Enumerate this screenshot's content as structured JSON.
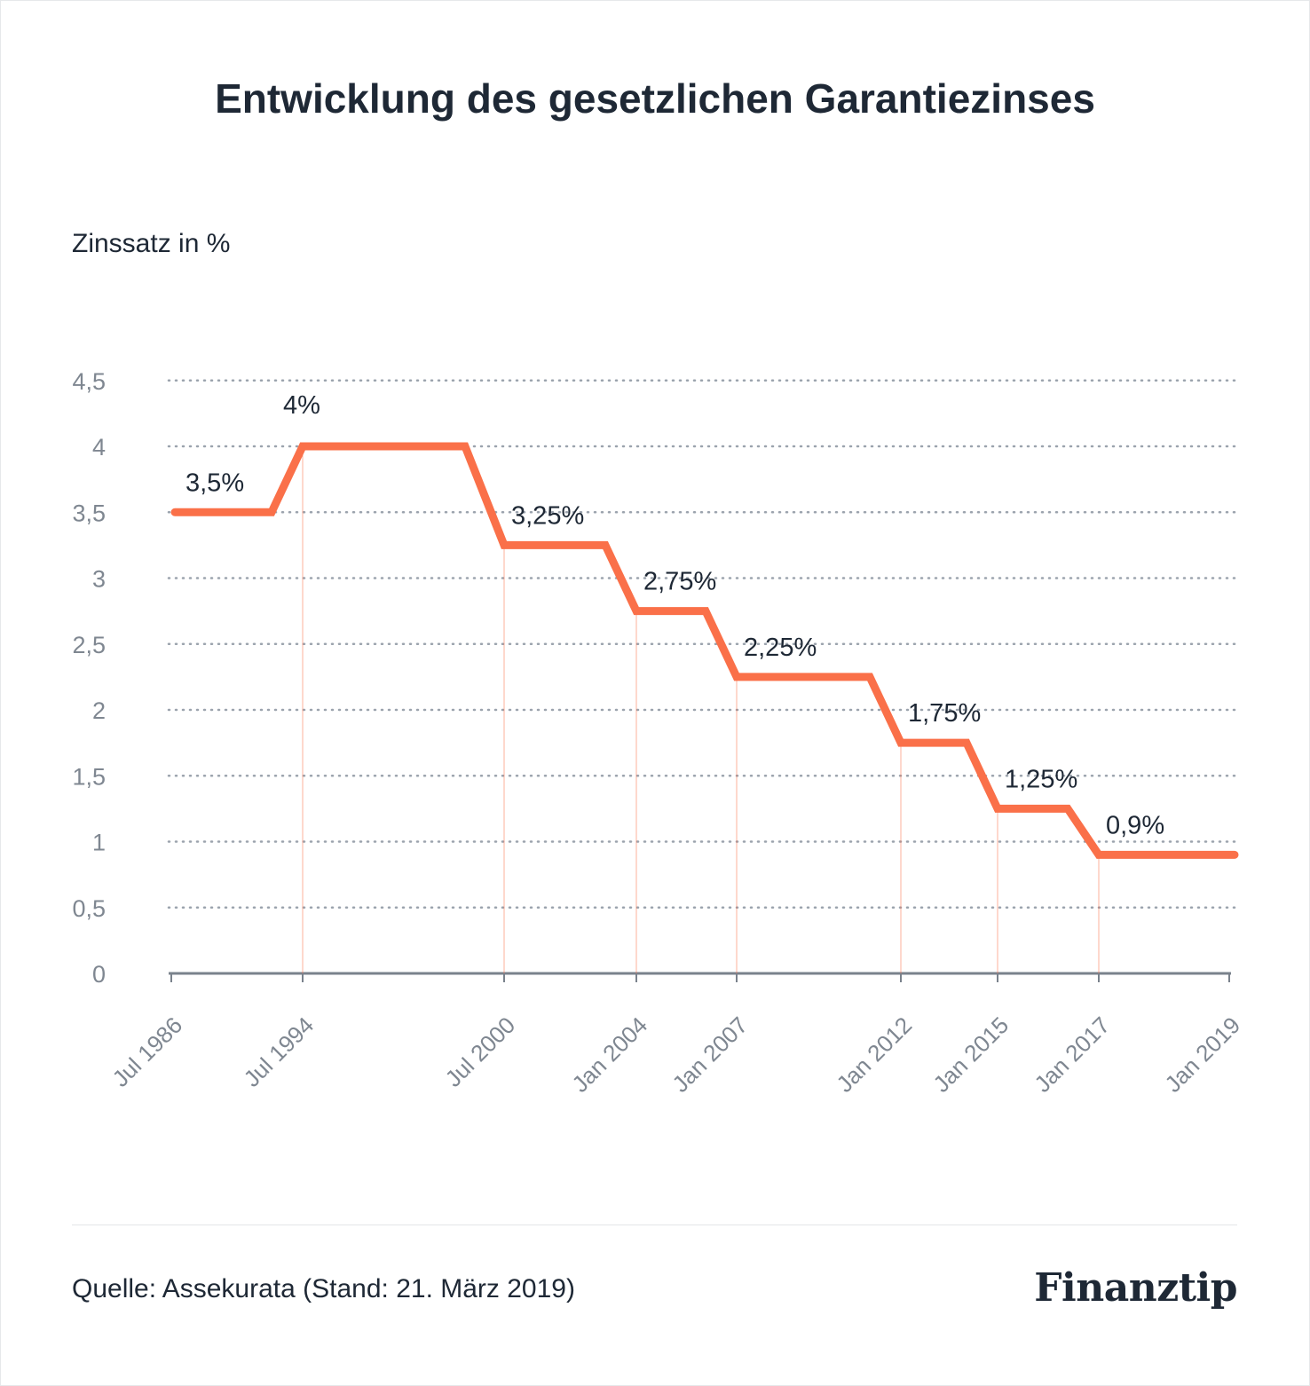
{
  "title": "Entwicklung des gesetzlichen Garantiezinses",
  "source": "Quelle: Assekurata (Stand: 21. März 2019)",
  "logo": "Finanztip",
  "colors": {
    "line": "#fa7049",
    "grid": "#9ba3ad",
    "axis": "#7a828c",
    "text": "#1e2835",
    "tick_text": "#7f8791"
  },
  "chart_data": {
    "type": "line",
    "title": "Entwicklung des gesetzlichen Garantiezinses",
    "ylabel": "Zinssatz in %",
    "xlabel": "",
    "ylim": [
      0,
      4.5
    ],
    "yticks": [
      "0",
      "0,5",
      "1",
      "1,5",
      "2",
      "2,5",
      "3",
      "3,5",
      "4",
      "4,5"
    ],
    "xlim": [
      "1986-07",
      "2019-01"
    ],
    "x_ticks": [
      {
        "date": "1986-07",
        "label": "Jul 1986"
      },
      {
        "date": "1994-07",
        "label": "Jul 1994"
      },
      {
        "date": "2000-07",
        "label": "Jul 2000"
      },
      {
        "date": "2004-01",
        "label": "Jan 2004"
      },
      {
        "date": "2007-01",
        "label": "Jan 2007"
      },
      {
        "date": "2012-01",
        "label": "Jan 2012"
      },
      {
        "date": "2015-01",
        "label": "Jan 2015"
      },
      {
        "date": "2017-01",
        "label": "Jan 2017"
      },
      {
        "date": "2019-01",
        "label": "Jan 2019"
      }
    ],
    "grid": "horizontal dotted",
    "series": [
      {
        "step": true,
        "points": [
          {
            "x": "1986-07",
            "y": 3.5
          },
          {
            "x": "1994-07",
            "y": 4.0
          },
          {
            "x": "2000-07",
            "y": 3.25
          },
          {
            "x": "2004-01",
            "y": 2.75
          },
          {
            "x": "2007-01",
            "y": 2.25
          },
          {
            "x": "2012-01",
            "y": 1.75
          },
          {
            "x": "2015-01",
            "y": 1.25
          },
          {
            "x": "2017-01",
            "y": 0.9
          },
          {
            "x": "2019-01",
            "y": 0.9
          }
        ]
      }
    ],
    "data_labels": [
      {
        "x": "1986-07",
        "text": "3,5%"
      },
      {
        "x": "1994-07",
        "text": "4%"
      },
      {
        "x": "2000-07",
        "text": "3,25%"
      },
      {
        "x": "2004-01",
        "text": "2,75%"
      },
      {
        "x": "2007-01",
        "text": "2,25%"
      },
      {
        "x": "2012-01",
        "text": "1,75%"
      },
      {
        "x": "2015-01",
        "text": "1,25%"
      },
      {
        "x": "2017-01",
        "text": "0,9%"
      }
    ]
  }
}
